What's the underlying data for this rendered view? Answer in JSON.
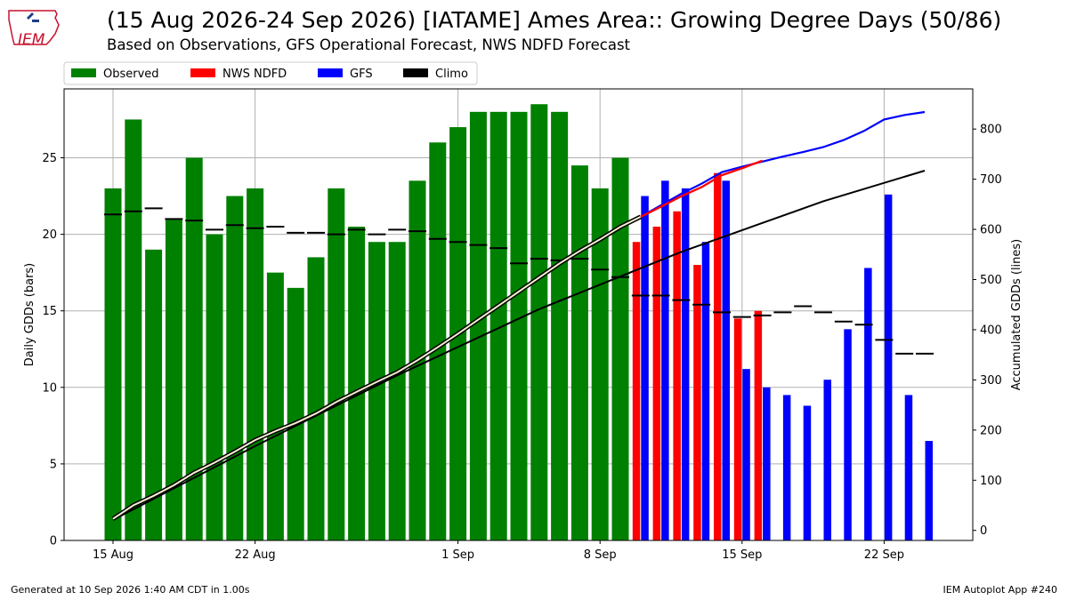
{
  "header": {
    "title": "(15 Aug 2026-24 Sep 2026) [IATAME] Ames Area:: Growing Degree Days (50/86)",
    "subtitle": "Based on Observations, GFS Operational Forecast, NWS NDFD Forecast"
  },
  "logo": {
    "text": "IEM"
  },
  "footer": {
    "left": "Generated at 10 Sep 2026 1:40 AM CDT in 1.00s",
    "right": "IEM Autoplot App #240"
  },
  "colors": {
    "observed": "#008000",
    "ndfd": "#ff0000",
    "gfs": "#0000ff",
    "climo": "#000000",
    "grid": "#b0b0b0"
  },
  "chart_data": {
    "type": "bar",
    "x_start": "2026-08-15",
    "xticks": [
      "15 Aug",
      "22 Aug",
      "1 Sep",
      "8 Sep",
      "15 Sep",
      "22 Sep"
    ],
    "ylabel_left": "Daily GDDs (bars)",
    "ylabel_right": "Accumulated GDDs (lines)",
    "ylim_left": [
      0,
      29.5
    ],
    "yticks_left": [
      0,
      5,
      10,
      15,
      20,
      25
    ],
    "ylim_right": [
      -20,
      880
    ],
    "yticks_right": [
      0,
      100,
      200,
      300,
      400,
      500,
      600,
      700,
      800
    ],
    "grid": true,
    "legend_position": "top-left, above plot",
    "legend": [
      "Observed",
      "NWS NDFD",
      "GFS",
      "Climo"
    ],
    "observed": {
      "dates": [
        "2026-08-15",
        "2026-08-16",
        "2026-08-17",
        "2026-08-18",
        "2026-08-19",
        "2026-08-20",
        "2026-08-21",
        "2026-08-22",
        "2026-08-23",
        "2026-08-24",
        "2026-08-25",
        "2026-08-26",
        "2026-08-27",
        "2026-08-28",
        "2026-08-29",
        "2026-08-30",
        "2026-08-31",
        "2026-09-01",
        "2026-09-02",
        "2026-09-03",
        "2026-09-04",
        "2026-09-05",
        "2026-09-06",
        "2026-09-07",
        "2026-09-08",
        "2026-09-09"
      ],
      "values": [
        23,
        27.5,
        19,
        21,
        25,
        20,
        22.5,
        23,
        17.5,
        16.5,
        18.5,
        23,
        20.5,
        19.5,
        19.5,
        23.5,
        26,
        27,
        28,
        28,
        28,
        28.5,
        28,
        24.5,
        23,
        25
      ]
    },
    "ndfd": {
      "dates": [
        "2026-09-10",
        "2026-09-11",
        "2026-09-12",
        "2026-09-13",
        "2026-09-14",
        "2026-09-15",
        "2026-09-16"
      ],
      "values": [
        19.5,
        20.5,
        21.5,
        18,
        24,
        14.5,
        15
      ]
    },
    "gfs": {
      "dates": [
        "2026-09-10",
        "2026-09-11",
        "2026-09-12",
        "2026-09-13",
        "2026-09-14",
        "2026-09-15",
        "2026-09-16",
        "2026-09-17",
        "2026-09-18",
        "2026-09-19",
        "2026-09-20",
        "2026-09-21",
        "2026-09-22",
        "2026-09-23",
        "2026-09-24"
      ],
      "values": [
        22.5,
        23.5,
        23,
        19.5,
        23.5,
        11.2,
        10,
        9.5,
        8.8,
        10.5,
        13.8,
        17.8,
        22.6,
        9.5,
        6.5
      ]
    },
    "climo_daily": {
      "dates": [
        "2026-08-15",
        "2026-08-16",
        "2026-08-17",
        "2026-08-18",
        "2026-08-19",
        "2026-08-20",
        "2026-08-21",
        "2026-08-22",
        "2026-08-23",
        "2026-08-24",
        "2026-08-25",
        "2026-08-26",
        "2026-08-27",
        "2026-08-28",
        "2026-08-29",
        "2026-08-30",
        "2026-08-31",
        "2026-09-01",
        "2026-09-02",
        "2026-09-03",
        "2026-09-04",
        "2026-09-05",
        "2026-09-06",
        "2026-09-07",
        "2026-09-08",
        "2026-09-09",
        "2026-09-10",
        "2026-09-11",
        "2026-09-12",
        "2026-09-13",
        "2026-09-14",
        "2026-09-15",
        "2026-09-16",
        "2026-09-17",
        "2026-09-18",
        "2026-09-19",
        "2026-09-20",
        "2026-09-21",
        "2026-09-22",
        "2026-09-23",
        "2026-09-24"
      ],
      "values": [
        21.3,
        21.5,
        21.7,
        21.0,
        20.9,
        20.3,
        20.6,
        20.4,
        20.5,
        20.1,
        20.1,
        20.0,
        20.3,
        20.0,
        20.3,
        20.2,
        19.7,
        19.5,
        19.3,
        19.1,
        18.1,
        18.4,
        18.3,
        18.4,
        17.7,
        17.2,
        16.0,
        16.0,
        15.7,
        15.4,
        14.9,
        14.6,
        14.7,
        14.9,
        15.3,
        14.9,
        14.3,
        14.1,
        13.1,
        12.2,
        12.2
      ]
    },
    "accum_observed": {
      "dates": [
        "2026-08-15",
        "2026-08-16",
        "2026-08-17",
        "2026-08-18",
        "2026-08-19",
        "2026-08-20",
        "2026-08-21",
        "2026-08-22",
        "2026-08-23",
        "2026-08-24",
        "2026-08-25",
        "2026-08-26",
        "2026-08-27",
        "2026-08-28",
        "2026-08-29",
        "2026-08-30",
        "2026-08-31",
        "2026-09-01",
        "2026-09-02",
        "2026-09-03",
        "2026-09-04",
        "2026-09-05",
        "2026-09-06",
        "2026-09-07",
        "2026-09-08",
        "2026-09-09",
        "2026-09-10"
      ],
      "values": [
        23,
        50,
        69,
        90,
        115,
        135,
        157,
        180,
        198,
        214,
        233,
        256,
        276,
        296,
        315,
        339,
        365,
        392,
        420,
        448,
        476,
        504,
        532,
        557,
        580,
        605,
        625
      ]
    },
    "accum_ndfd": {
      "dates": [
        "2026-09-10",
        "2026-09-11",
        "2026-09-12",
        "2026-09-13",
        "2026-09-14",
        "2026-09-15",
        "2026-09-16"
      ],
      "values": [
        625,
        645,
        666,
        684,
        708,
        722,
        737
      ]
    },
    "accum_gfs": {
      "dates": [
        "2026-09-10",
        "2026-09-11",
        "2026-09-12",
        "2026-09-13",
        "2026-09-14",
        "2026-09-15",
        "2026-09-16",
        "2026-09-17",
        "2026-09-18",
        "2026-09-19",
        "2026-09-20",
        "2026-09-21",
        "2026-09-22",
        "2026-09-23",
        "2026-09-24"
      ],
      "values": [
        625,
        648,
        671,
        691,
        714,
        725,
        735,
        745,
        754,
        764,
        778,
        796,
        819,
        828,
        834
      ]
    },
    "accum_climo": {
      "dates": [
        "2026-08-15",
        "2026-08-22",
        "2026-08-29",
        "2026-09-05",
        "2026-09-12",
        "2026-09-19",
        "2026-09-24"
      ],
      "values": [
        21,
        168,
        309,
        441,
        555,
        656,
        717
      ]
    }
  }
}
